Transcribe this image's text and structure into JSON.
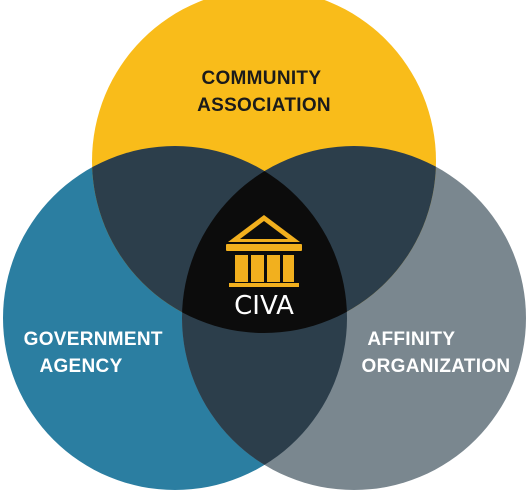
{
  "circles": {
    "top": {
      "label_lines": [
        "COMMUNITY",
        "ASSOCIATION"
      ],
      "color": "#F9BC1A",
      "text_color": "#1B1B1B"
    },
    "left": {
      "label_lines": [
        "GOVERNMENT",
        "AGENCY"
      ],
      "color": "#2B7EA1",
      "text_color": "#FFFFFF"
    },
    "right": {
      "label_lines": [
        "AFFINITY",
        "ORGANIZATION"
      ],
      "color": "#7A878F",
      "text_color": "#FFFFFF"
    }
  },
  "overlap_color": "#2C3E4B",
  "center": {
    "label": "CIVA",
    "color": "#0C0C0C",
    "text_color": "#FFFFFF",
    "icon": "building-columns-icon",
    "icon_color": "#F2B01E"
  }
}
